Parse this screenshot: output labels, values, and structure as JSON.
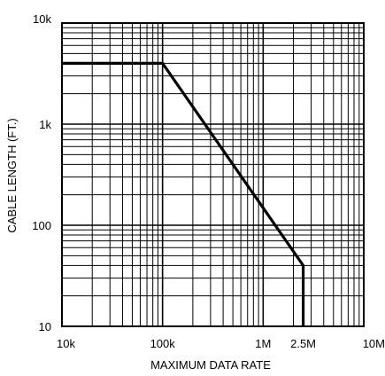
{
  "chart_data": {
    "type": "line",
    "title": "",
    "xlabel": "MAXIMUM DATA RATE",
    "ylabel": "CABLE LENGTH (FT.)",
    "x_scale": "log",
    "y_scale": "log",
    "xlim": [
      10000,
      10000000
    ],
    "ylim": [
      10,
      10000
    ],
    "grid": true,
    "legend": "none",
    "x_tick_labels": [
      {
        "value": 10000,
        "label": "10k"
      },
      {
        "value": 100000,
        "label": "100k"
      },
      {
        "value": 1000000,
        "label": "1M"
      },
      {
        "value": 2500000,
        "label": "2.5M"
      },
      {
        "value": 10000000,
        "label": "10M"
      }
    ],
    "y_tick_labels": [
      {
        "value": 10,
        "label": "10"
      },
      {
        "value": 100,
        "label": "100"
      },
      {
        "value": 1000,
        "label": "1k"
      },
      {
        "value": 10000,
        "label": "10k"
      }
    ],
    "series": [
      {
        "x": [
          10000,
          100000,
          2500000,
          2500000
        ],
        "y": [
          4000,
          4000,
          40,
          10
        ]
      }
    ],
    "colors": {
      "line": "#000000",
      "grid": "#000000",
      "background": "#ffffff"
    }
  }
}
